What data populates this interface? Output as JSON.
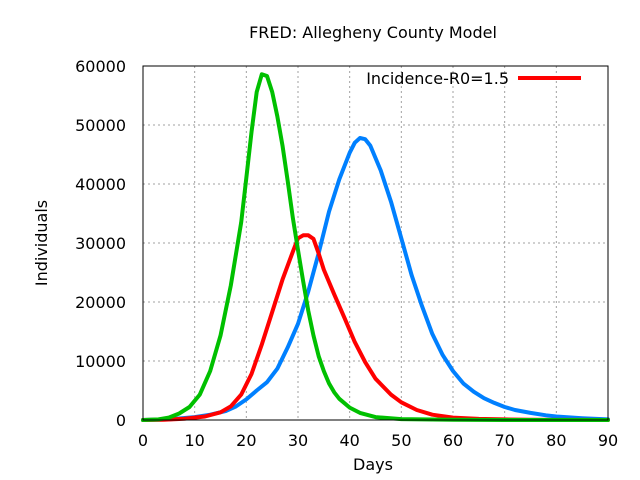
{
  "chart_data": {
    "type": "line",
    "title": "FRED: Allegheny County Model",
    "xlabel": "Days",
    "ylabel": "Individuals",
    "xlim": [
      0,
      90
    ],
    "ylim": [
      0,
      60000
    ],
    "xticks": [
      0,
      10,
      20,
      30,
      40,
      50,
      60,
      70,
      80,
      90
    ],
    "yticks": [
      0,
      10000,
      20000,
      30000,
      40000,
      50000,
      60000
    ],
    "grid": true,
    "legend_position": "top-right",
    "series": [
      {
        "name": "Incidence-R0=1.5",
        "color": "#ff0000",
        "in_legend": true,
        "points": [
          [
            0,
            0
          ],
          [
            4,
            50
          ],
          [
            8,
            200
          ],
          [
            12,
            600
          ],
          [
            15,
            1300
          ],
          [
            17,
            2300
          ],
          [
            19,
            4300
          ],
          [
            21,
            7800
          ],
          [
            23,
            12800
          ],
          [
            25,
            18300
          ],
          [
            27,
            23800
          ],
          [
            29,
            28500
          ],
          [
            30,
            30800
          ],
          [
            31,
            31300
          ],
          [
            32,
            31300
          ],
          [
            33,
            30700
          ],
          [
            34,
            28200
          ],
          [
            35,
            25500
          ],
          [
            37,
            21300
          ],
          [
            39,
            17300
          ],
          [
            41,
            13200
          ],
          [
            43,
            9800
          ],
          [
            45,
            7000
          ],
          [
            48,
            4300
          ],
          [
            50,
            3000
          ],
          [
            53,
            1700
          ],
          [
            56,
            900
          ],
          [
            60,
            400
          ],
          [
            65,
            180
          ],
          [
            70,
            100
          ],
          [
            75,
            50
          ],
          [
            80,
            20
          ],
          [
            85,
            10
          ],
          [
            90,
            0
          ]
        ]
      },
      {
        "name": "",
        "color": "#00c000",
        "in_legend": false,
        "points": [
          [
            0,
            0
          ],
          [
            3,
            100
          ],
          [
            5,
            400
          ],
          [
            7,
            1100
          ],
          [
            9,
            2200
          ],
          [
            11,
            4300
          ],
          [
            13,
            8300
          ],
          [
            15,
            14300
          ],
          [
            17,
            22800
          ],
          [
            19,
            33500
          ],
          [
            20,
            41000
          ],
          [
            21,
            48800
          ],
          [
            22,
            55600
          ],
          [
            23,
            58600
          ],
          [
            24,
            58300
          ],
          [
            25,
            55600
          ],
          [
            26,
            51500
          ],
          [
            27,
            46500
          ],
          [
            28,
            40500
          ],
          [
            29,
            34300
          ],
          [
            30,
            28800
          ],
          [
            31,
            23500
          ],
          [
            32,
            18500
          ],
          [
            33,
            14300
          ],
          [
            34,
            10800
          ],
          [
            35,
            8300
          ],
          [
            36,
            6200
          ],
          [
            37,
            4700
          ],
          [
            38,
            3600
          ],
          [
            40,
            2100
          ],
          [
            42,
            1200
          ],
          [
            45,
            500
          ],
          [
            50,
            150
          ],
          [
            60,
            30
          ],
          [
            70,
            0
          ],
          [
            90,
            0
          ]
        ]
      },
      {
        "name": "",
        "color": "#0080ff",
        "in_legend": false,
        "points": [
          [
            0,
            0
          ],
          [
            5,
            100
          ],
          [
            10,
            500
          ],
          [
            13,
            900
          ],
          [
            16,
            1500
          ],
          [
            18,
            2300
          ],
          [
            20,
            3500
          ],
          [
            22,
            5000
          ],
          [
            24,
            6400
          ],
          [
            26,
            8700
          ],
          [
            28,
            12300
          ],
          [
            30,
            16300
          ],
          [
            32,
            21800
          ],
          [
            34,
            28300
          ],
          [
            36,
            35300
          ],
          [
            38,
            40800
          ],
          [
            40,
            45300
          ],
          [
            41,
            47000
          ],
          [
            42,
            47800
          ],
          [
            43,
            47600
          ],
          [
            44,
            46500
          ],
          [
            46,
            42300
          ],
          [
            48,
            37000
          ],
          [
            50,
            30800
          ],
          [
            52,
            24500
          ],
          [
            54,
            19300
          ],
          [
            56,
            14600
          ],
          [
            58,
            11000
          ],
          [
            60,
            8300
          ],
          [
            62,
            6200
          ],
          [
            64,
            4800
          ],
          [
            66,
            3700
          ],
          [
            68,
            2900
          ],
          [
            70,
            2200
          ],
          [
            72,
            1700
          ],
          [
            75,
            1200
          ],
          [
            78,
            800
          ],
          [
            80,
            600
          ],
          [
            85,
            300
          ],
          [
            90,
            100
          ]
        ]
      }
    ]
  }
}
